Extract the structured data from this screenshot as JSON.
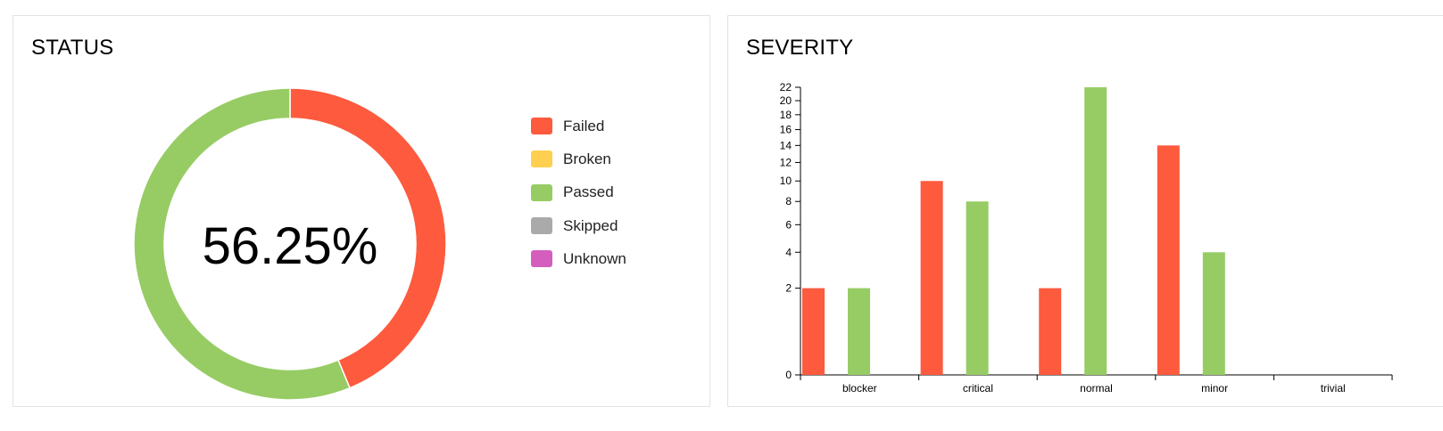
{
  "status_panel": {
    "title": "STATUS",
    "center_label": "56.25%",
    "legend": [
      {
        "label": "Failed",
        "color": "#fd5a3e"
      },
      {
        "label": "Broken",
        "color": "#ffd050"
      },
      {
        "label": "Passed",
        "color": "#97cc64"
      },
      {
        "label": "Skipped",
        "color": "#aaaaaa"
      },
      {
        "label": "Unknown",
        "color": "#d35ebe"
      }
    ]
  },
  "severity_panel": {
    "title": "SEVERITY"
  },
  "chart_data": [
    {
      "type": "pie",
      "title": "STATUS",
      "donut": true,
      "center_label": "56.25%",
      "slices": [
        {
          "label": "Failed",
          "value": 43.75,
          "color": "#fd5a3e"
        },
        {
          "label": "Passed",
          "value": 56.25,
          "color": "#97cc64"
        }
      ],
      "legend": [
        "Failed",
        "Broken",
        "Passed",
        "Skipped",
        "Unknown"
      ],
      "legend_placement": "right"
    },
    {
      "type": "bar",
      "title": "SEVERITY",
      "categories": [
        "blocker",
        "critical",
        "normal",
        "minor",
        "trivial"
      ],
      "series": [
        {
          "values": [
            2,
            10,
            2,
            14,
            0
          ],
          "color": "#fd5a3e"
        },
        {
          "values": [
            2,
            8,
            22,
            4,
            0
          ],
          "color": "#97cc64"
        }
      ],
      "yscale": "sqrt",
      "ylim": [
        0,
        22
      ],
      "yticks": [
        0,
        2,
        4,
        6,
        8,
        10,
        12,
        14,
        16,
        18,
        20,
        22
      ],
      "grid": false
    }
  ]
}
